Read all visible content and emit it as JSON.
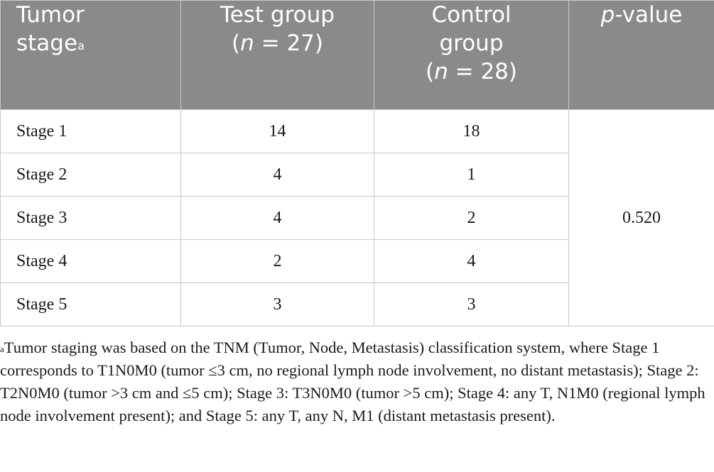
{
  "table": {
    "headers": {
      "stage_line1": "Tumor",
      "stage_line2": "stage",
      "stage_sup": "a",
      "test_line1": "Test group",
      "test_n_open": "(",
      "test_n_var": "n",
      "test_n_rest": " = 27)",
      "control_line1": "Control",
      "control_line2": "group",
      "control_n_open": "(",
      "control_n_var": "n",
      "control_n_rest": " = 28)",
      "p_var": "p",
      "p_rest": "-value"
    },
    "rows": [
      {
        "stage": "Stage 1",
        "test": "14",
        "control": "18"
      },
      {
        "stage": "Stage 2",
        "test": "4",
        "control": "1"
      },
      {
        "stage": "Stage 3",
        "test": "4",
        "control": "2"
      },
      {
        "stage": "Stage 4",
        "test": "2",
        "control": "4"
      },
      {
        "stage": "Stage 5",
        "test": "3",
        "control": "3"
      }
    ],
    "p_value": "0.520"
  },
  "footnote": {
    "marker": "a",
    "text": "Tumor staging was based on the TNM (Tumor, Node, Metastasis) classification system, where Stage 1 corresponds to T1N0M0 (tumor ≤3 cm, no regional lymph node involvement, no distant metastasis); Stage 2: T2N0M0 (tumor >3 cm and ≤5 cm); Stage 3: T3N0M0 (tumor >5 cm); Stage 4: any T, N1M0 (regional lymph node involvement present); and Stage 5: any T, any N, M1 (distant metastasis present)."
  },
  "colors": {
    "header_bg": "#8a8a8a",
    "header_text": "#ffffff",
    "border": "#c9c9c9",
    "body_text": "#1a1a1a"
  }
}
